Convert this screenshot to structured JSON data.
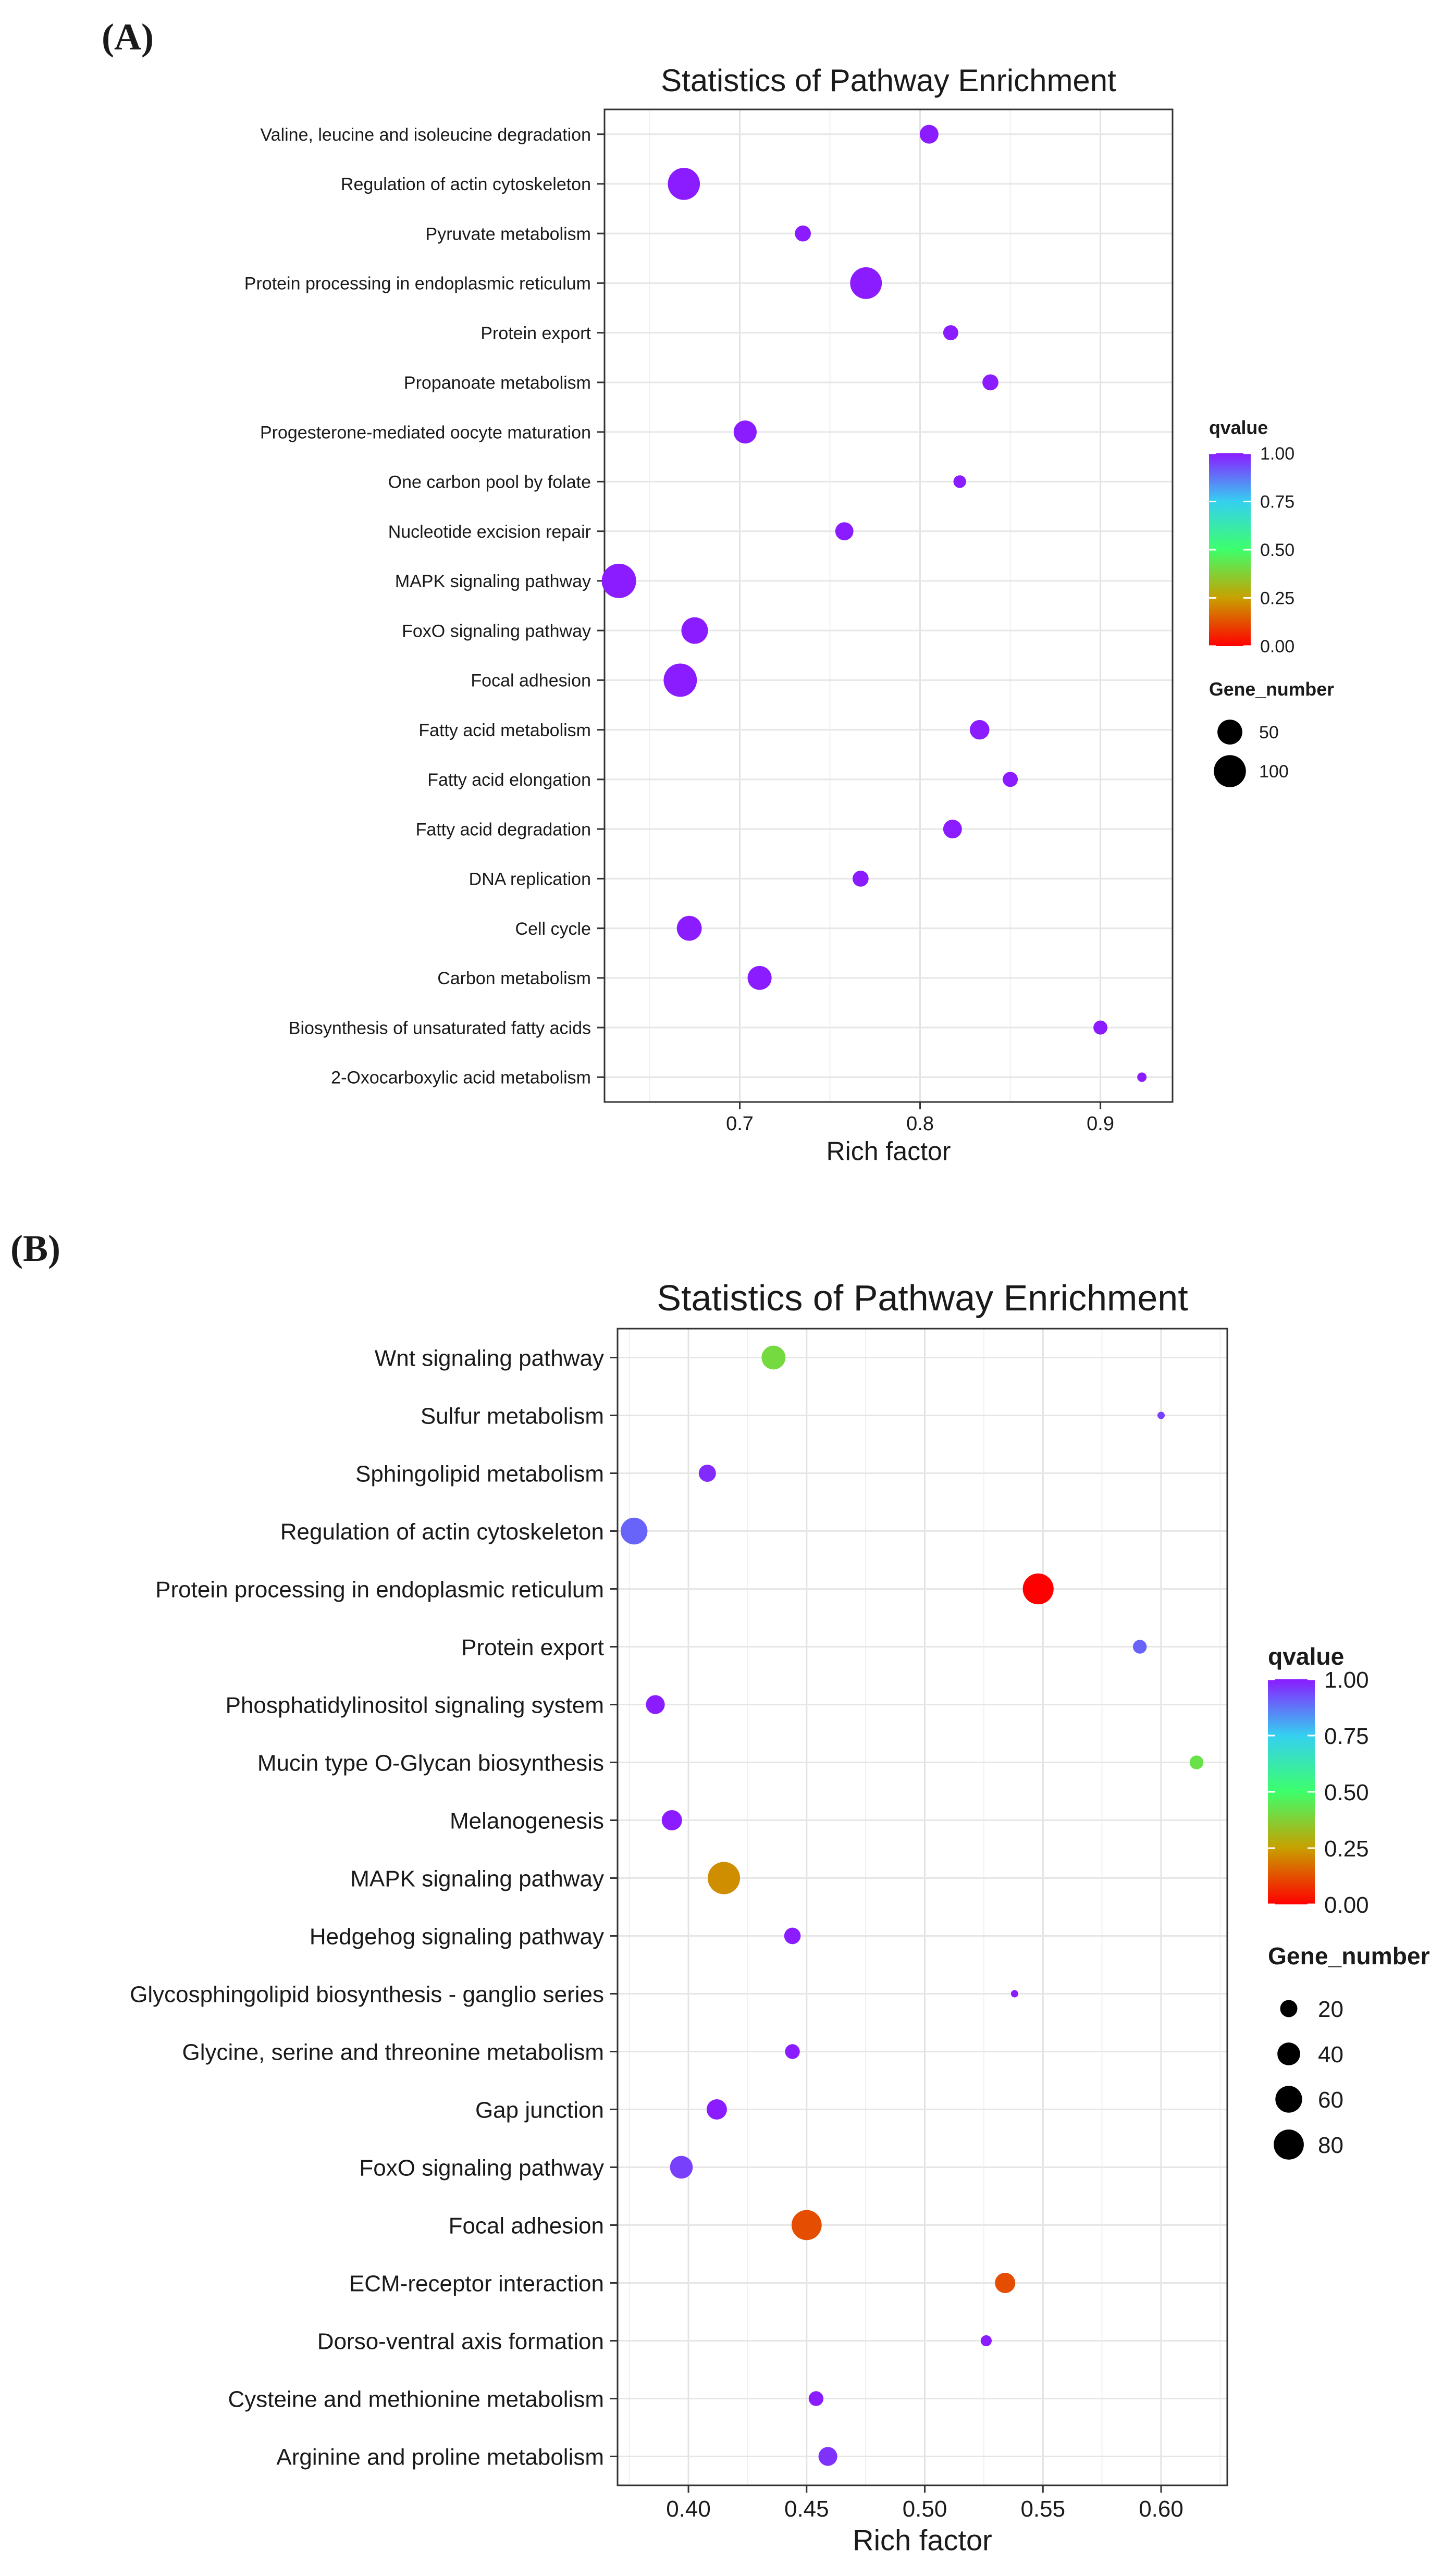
{
  "chart_data": [
    {
      "panel_label": "(A)",
      "type": "scatter",
      "title": "Statistics of Pathway Enrichment",
      "xlabel": "Rich factor",
      "ylabel": "",
      "xlim": [
        0.625,
        0.94
      ],
      "xticks": [
        0.7,
        0.8,
        0.9
      ],
      "xtick_labels": [
        "0.7",
        "0.8",
        "0.9"
      ],
      "grid": true,
      "categories": [
        "Valine, leucine and isoleucine degradation",
        "Regulation of actin cytoskeleton",
        "Pyruvate metabolism",
        "Protein processing in endoplasmic reticulum",
        "Protein export",
        "Propanoate metabolism",
        "Progesterone-mediated oocyte maturation",
        "One carbon pool by folate",
        "Nucleotide excision repair",
        "MAPK signaling pathway",
        "FoxO signaling pathway",
        "Focal adhesion",
        "Fatty acid metabolism",
        "Fatty acid elongation",
        "Fatty acid degradation",
        "DNA replication",
        "Cell cycle",
        "Carbon metabolism",
        "Biosynthesis of unsaturated fatty acids",
        "2-Oxocarboxylic acid metabolism"
      ],
      "points": [
        {
          "pathway": "Valine, leucine and isoleucine degradation",
          "rich_factor": 0.805,
          "gene_number": 22,
          "qvalue": 1.0
        },
        {
          "pathway": "Regulation of actin cytoskeleton",
          "rich_factor": 0.669,
          "gene_number": 100,
          "qvalue": 1.0
        },
        {
          "pathway": "Pyruvate metabolism",
          "rich_factor": 0.735,
          "gene_number": 14,
          "qvalue": 1.0
        },
        {
          "pathway": "Protein processing in endoplasmic reticulum",
          "rich_factor": 0.77,
          "gene_number": 97,
          "qvalue": 1.0
        },
        {
          "pathway": "Protein export",
          "rich_factor": 0.817,
          "gene_number": 12,
          "qvalue": 1.0
        },
        {
          "pathway": "Propanoate metabolism",
          "rich_factor": 0.839,
          "gene_number": 14,
          "qvalue": 1.0
        },
        {
          "pathway": "Progesterone-mediated oocyte maturation",
          "rich_factor": 0.703,
          "gene_number": 40,
          "qvalue": 1.0
        },
        {
          "pathway": "One carbon pool by folate",
          "rich_factor": 0.822,
          "gene_number": 8,
          "qvalue": 1.0
        },
        {
          "pathway": "Nucleotide excision repair",
          "rich_factor": 0.758,
          "gene_number": 20,
          "qvalue": 1.0
        },
        {
          "pathway": "MAPK signaling pathway",
          "rich_factor": 0.633,
          "gene_number": 120,
          "qvalue": 1.0
        },
        {
          "pathway": "FoxO signaling pathway",
          "rich_factor": 0.675,
          "gene_number": 60,
          "qvalue": 1.0
        },
        {
          "pathway": "Focal adhesion",
          "rich_factor": 0.667,
          "gene_number": 110,
          "qvalue": 1.0
        },
        {
          "pathway": "Fatty acid metabolism",
          "rich_factor": 0.833,
          "gene_number": 25,
          "qvalue": 1.0
        },
        {
          "pathway": "Fatty acid elongation",
          "rich_factor": 0.85,
          "gene_number": 12,
          "qvalue": 1.0
        },
        {
          "pathway": "Fatty acid degradation",
          "rich_factor": 0.818,
          "gene_number": 22,
          "qvalue": 1.0
        },
        {
          "pathway": "DNA replication",
          "rich_factor": 0.767,
          "gene_number": 14,
          "qvalue": 1.0
        },
        {
          "pathway": "Cell cycle",
          "rich_factor": 0.672,
          "gene_number": 50,
          "qvalue": 1.0
        },
        {
          "pathway": "Carbon metabolism",
          "rich_factor": 0.711,
          "gene_number": 45,
          "qvalue": 1.0
        },
        {
          "pathway": "Biosynthesis of unsaturated fatty acids",
          "rich_factor": 0.9,
          "gene_number": 10,
          "qvalue": 1.0
        },
        {
          "pathway": "2-Oxocarboxylic acid metabolism",
          "rich_factor": 0.923,
          "gene_number": 6,
          "qvalue": 1.0
        }
      ],
      "legend": {
        "color_title": "qvalue",
        "color_range": [
          0.0,
          1.0
        ],
        "color_tick_labels": [
          "1.00",
          "0.75",
          "0.50",
          "0.25",
          "0.00"
        ],
        "size_title": "Gene_number",
        "size_entries": [
          {
            "label": "50",
            "value": 50
          },
          {
            "label": "100",
            "value": 100
          }
        ],
        "placement": "right"
      }
    },
    {
      "panel_label": "(B)",
      "type": "scatter",
      "title": "Statistics of Pathway Enrichment",
      "xlabel": "Rich factor",
      "ylabel": "",
      "xlim": [
        0.37,
        0.628
      ],
      "xticks": [
        0.4,
        0.45,
        0.5,
        0.55,
        0.6
      ],
      "xtick_labels": [
        "0.40",
        "0.45",
        "0.50",
        "0.55",
        "0.60"
      ],
      "grid": true,
      "categories": [
        "Wnt signaling pathway",
        "Sulfur metabolism",
        "Sphingolipid metabolism",
        "Regulation of actin cytoskeleton",
        "Protein processing in endoplasmic reticulum",
        "Protein export",
        "Phosphatidylinositol signaling system",
        "Mucin type O-Glycan biosynthesis",
        "Melanogenesis",
        "MAPK signaling pathway",
        "Hedgehog signaling pathway",
        "Glycosphingolipid biosynthesis - ganglio series",
        "Glycine, serine and threonine metabolism",
        "Gap junction",
        "FoxO signaling pathway",
        "Focal adhesion",
        "ECM-receptor interaction",
        "Dorso-ventral axis formation",
        "Cysteine and methionine metabolism",
        "Arginine and proline metabolism"
      ],
      "points": [
        {
          "pathway": "Wnt signaling pathway",
          "rich_factor": 0.436,
          "gene_number": 45,
          "qvalue": 0.4
        },
        {
          "pathway": "Sulfur metabolism",
          "rich_factor": 0.6,
          "gene_number": 6,
          "qvalue": 0.95
        },
        {
          "pathway": "Sphingolipid metabolism",
          "rich_factor": 0.408,
          "gene_number": 20,
          "qvalue": 0.98
        },
        {
          "pathway": "Regulation of actin cytoskeleton",
          "rich_factor": 0.377,
          "gene_number": 60,
          "qvalue": 0.9
        },
        {
          "pathway": "Protein processing in endoplasmic reticulum",
          "rich_factor": 0.548,
          "gene_number": 85,
          "qvalue": 0.0
        },
        {
          "pathway": "Protein export",
          "rich_factor": 0.591,
          "gene_number": 12,
          "qvalue": 0.9
        },
        {
          "pathway": "Phosphatidylinositol signaling system",
          "rich_factor": 0.386,
          "gene_number": 25,
          "qvalue": 1.0
        },
        {
          "pathway": "Mucin type O-Glycan biosynthesis",
          "rich_factor": 0.615,
          "gene_number": 12,
          "qvalue": 0.42
        },
        {
          "pathway": "Melanogenesis",
          "rich_factor": 0.393,
          "gene_number": 30,
          "qvalue": 1.0
        },
        {
          "pathway": "MAPK signaling pathway",
          "rich_factor": 0.415,
          "gene_number": 95,
          "qvalue": 0.22
        },
        {
          "pathway": "Hedgehog signaling pathway",
          "rich_factor": 0.444,
          "gene_number": 18,
          "qvalue": 1.0
        },
        {
          "pathway": "Glycosphingolipid biosynthesis - ganglio series",
          "rich_factor": 0.538,
          "gene_number": 6,
          "qvalue": 1.0
        },
        {
          "pathway": "Glycine, serine and threonine metabolism",
          "rich_factor": 0.444,
          "gene_number": 14,
          "qvalue": 1.0
        },
        {
          "pathway": "Gap junction",
          "rich_factor": 0.412,
          "gene_number": 30,
          "qvalue": 1.0
        },
        {
          "pathway": "FoxO signaling pathway",
          "rich_factor": 0.397,
          "gene_number": 40,
          "qvalue": 0.95
        },
        {
          "pathway": "Focal adhesion",
          "rich_factor": 0.45,
          "gene_number": 80,
          "qvalue": 0.12
        },
        {
          "pathway": "ECM-receptor interaction",
          "rich_factor": 0.534,
          "gene_number": 30,
          "qvalue": 0.12
        },
        {
          "pathway": "Dorso-ventral axis formation",
          "rich_factor": 0.526,
          "gene_number": 8,
          "qvalue": 1.0
        },
        {
          "pathway": "Cysteine and methionine metabolism",
          "rich_factor": 0.454,
          "gene_number": 14,
          "qvalue": 1.0
        },
        {
          "pathway": "Arginine and proline metabolism",
          "rich_factor": 0.459,
          "gene_number": 25,
          "qvalue": 0.97
        }
      ],
      "legend": {
        "color_title": "qvalue",
        "color_range": [
          0.0,
          1.0
        ],
        "color_tick_labels": [
          "1.00",
          "0.75",
          "0.50",
          "0.25",
          "0.00"
        ],
        "size_title": "Gene_number",
        "size_entries": [
          {
            "label": "20",
            "value": 20
          },
          {
            "label": "40",
            "value": 40
          },
          {
            "label": "60",
            "value": 60
          },
          {
            "label": "80",
            "value": 80
          }
        ],
        "placement": "right"
      }
    }
  ]
}
